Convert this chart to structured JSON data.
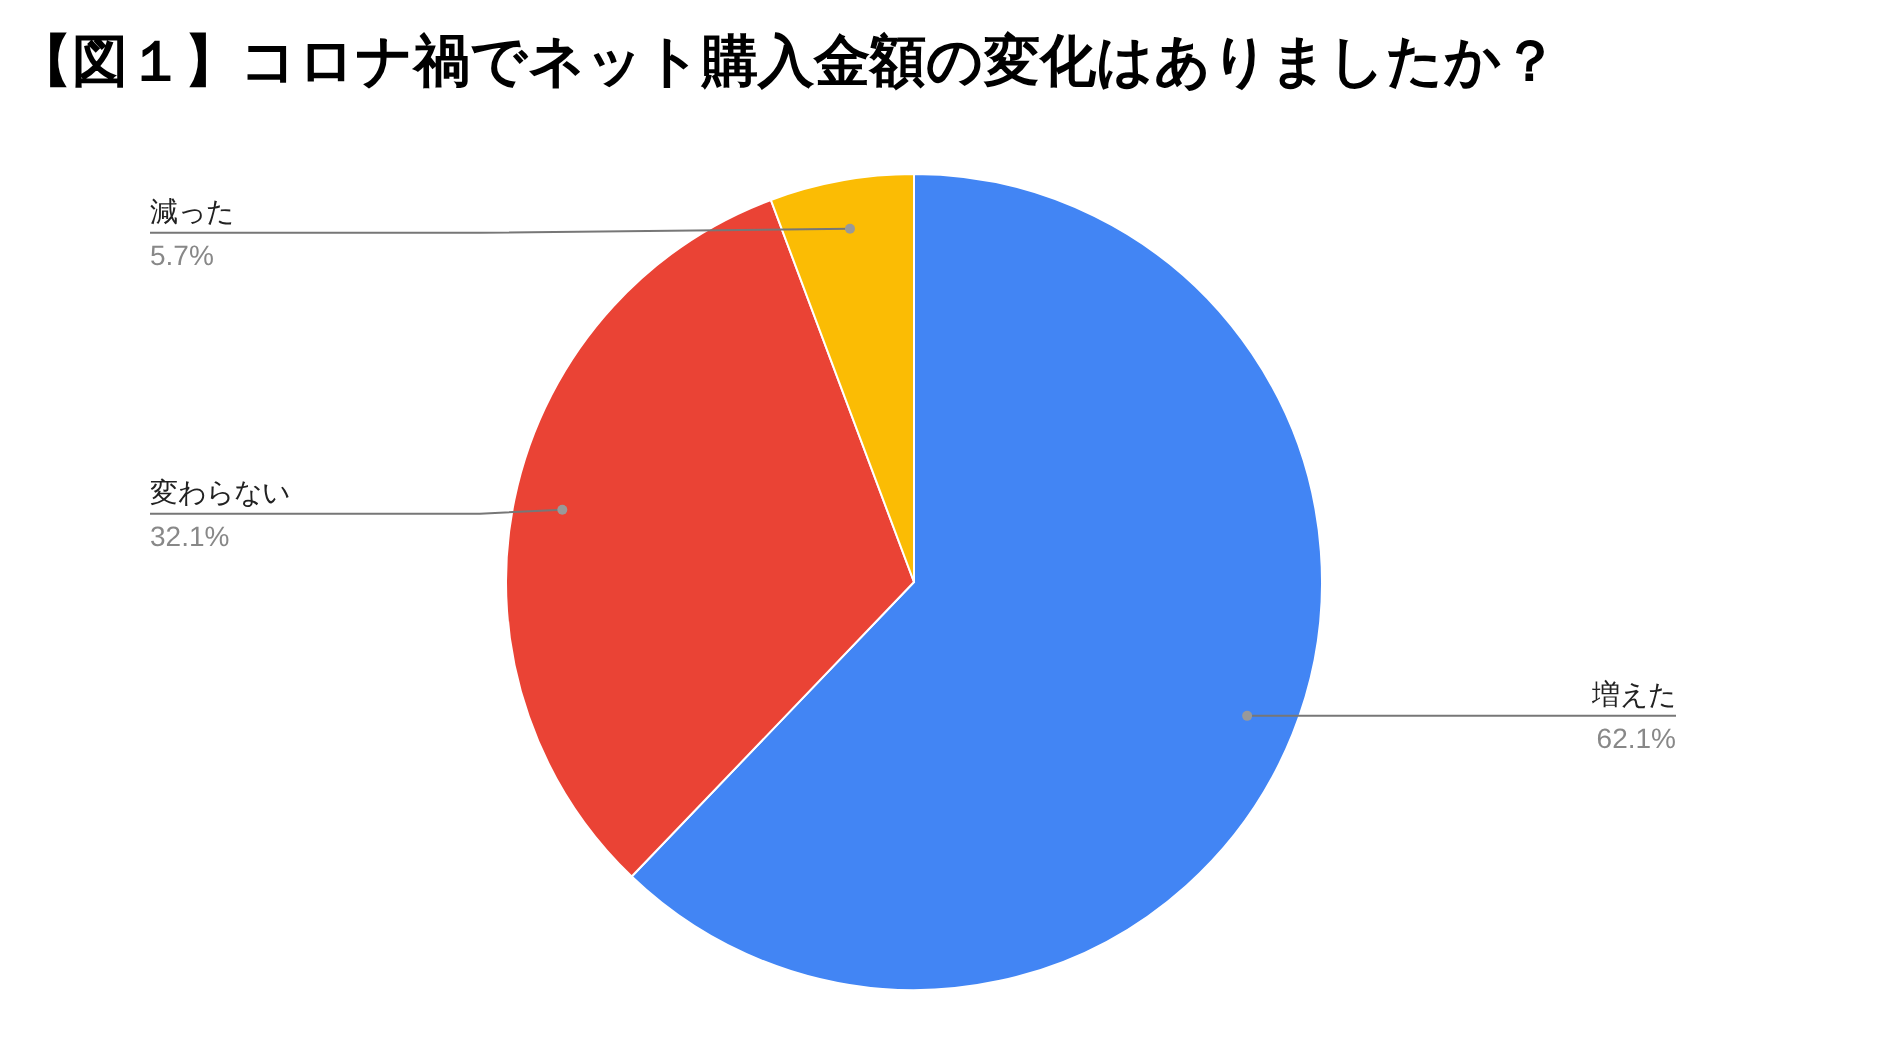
{
  "chart_data": {
    "type": "pie",
    "title": "【図１】コロナ禍でネット購入金額の変化はありましたか？",
    "categories": [
      "増えた",
      "変わらない",
      "減った"
    ],
    "values": [
      62.1,
      32.1,
      5.7
    ],
    "colors": [
      "#4285f4",
      "#ea4335",
      "#fbbc04"
    ],
    "value_labels": [
      "62.1%",
      "32.1%",
      "5.7%"
    ]
  }
}
